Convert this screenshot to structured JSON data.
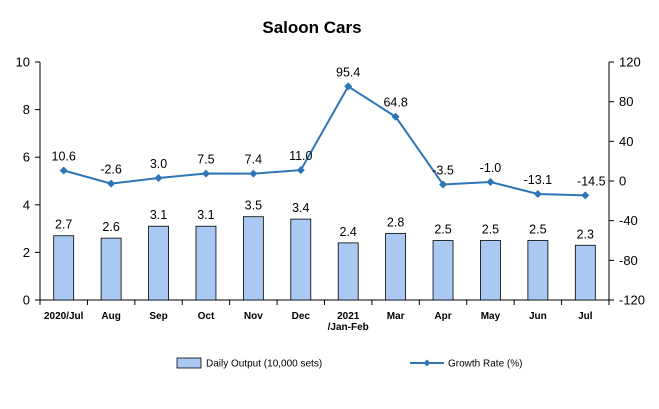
{
  "chart_data": {
    "type": "bar+line",
    "title": "Saloon Cars",
    "categories": [
      [
        "2020/Jul"
      ],
      [
        "Aug"
      ],
      [
        "Sep"
      ],
      [
        "Oct"
      ],
      [
        "Nov"
      ],
      [
        "Dec"
      ],
      [
        "2021",
        "/Jan-Feb"
      ],
      [
        "Mar"
      ],
      [
        "Apr"
      ],
      [
        "May"
      ],
      [
        "Jun"
      ],
      [
        "Jul"
      ]
    ],
    "series": [
      {
        "name": "Daily Output (10,000 sets)",
        "type": "bar",
        "axis": "left",
        "color": "#a9c9f2",
        "values": [
          2.7,
          2.6,
          3.1,
          3.1,
          3.5,
          3.4,
          2.4,
          2.8,
          2.5,
          2.5,
          2.5,
          2.3
        ]
      },
      {
        "name": "Growth Rate (%)",
        "type": "line",
        "axis": "right",
        "color": "#2e75b6",
        "values": [
          10.6,
          -2.6,
          3.0,
          7.5,
          7.4,
          11.0,
          95.4,
          64.8,
          -3.5,
          -1.0,
          -13.1,
          -14.5
        ]
      }
    ],
    "y_left": {
      "min": 0,
      "max": 10,
      "ticks": [
        "0",
        "2",
        "4",
        "6",
        "8",
        "10"
      ]
    },
    "y_right": {
      "min": -120,
      "max": 120,
      "ticks": [
        "-120",
        "-80",
        "-40",
        "0",
        "40",
        "80",
        "120"
      ]
    },
    "bar_labels": [
      "2.7",
      "2.6",
      "3.1",
      "3.1",
      "3.5",
      "3.4",
      "2.4",
      "2.8",
      "2.5",
      "2.5",
      "2.5",
      "2.3"
    ],
    "line_labels": [
      "10.6",
      "-2.6",
      "3.0",
      "7.5",
      "7.4",
      "11.0",
      "95.4",
      "64.8",
      "-3.5",
      "-1.0",
      "-13.1",
      "-14.5"
    ],
    "grid": false,
    "legend_position": "bottom"
  }
}
